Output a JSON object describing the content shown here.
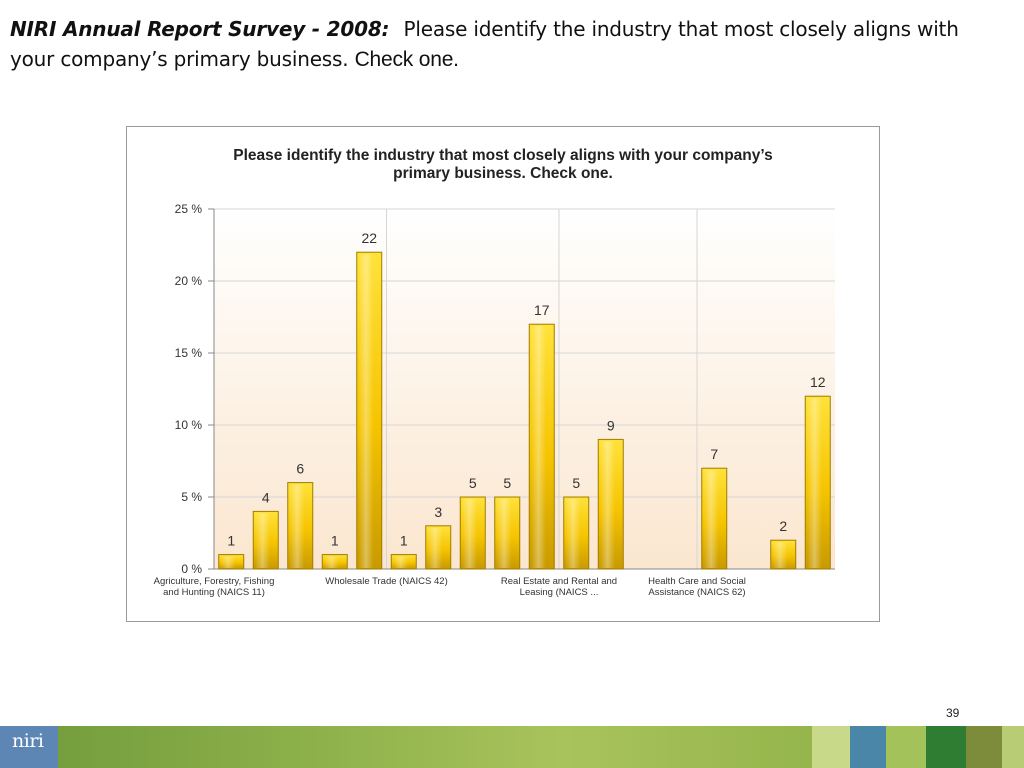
{
  "slide": {
    "heading_lead": "NIRI Annual Report Survey - 2008:",
    "heading_body": "Please identify the industry that most closely aligns with your company’s primary business.",
    "heading_tail": "Check one.",
    "page_number": "39",
    "logo_text": "niri"
  },
  "colors": {
    "bar_fill": "#f5c400",
    "bar_edge": "#b08a00",
    "footer_green": "#8db04a",
    "logo_blue": "#5d86b5"
  },
  "chart_data": {
    "type": "bar",
    "title_lines": [
      "Please identify the industry that most closely aligns with your company’s",
      "primary business. Check one."
    ],
    "ylim": [
      0,
      25
    ],
    "yticks": [
      0,
      5,
      10,
      15,
      20,
      25
    ],
    "ytick_labels": [
      "0 %",
      "5 %",
      "10 %",
      "15 %",
      "20 %",
      "25 %"
    ],
    "values": [
      1,
      4,
      6,
      1,
      22,
      1,
      3,
      5,
      5,
      17,
      5,
      9,
      null,
      null,
      7,
      null,
      2,
      12
    ],
    "value_labels": [
      "1",
      "4",
      "6",
      "1",
      "22",
      "1",
      "3",
      "5",
      "5",
      "17",
      "5",
      "9",
      "",
      "",
      "7",
      "",
      "2",
      "12"
    ],
    "category_labels": [
      {
        "index": 0,
        "lines": [
          "Agriculture, Forestry, Fishing",
          "and Hunting (NAICS 11)"
        ]
      },
      {
        "index": 5,
        "lines": [
          "Wholesale Trade (NAICS 42)"
        ]
      },
      {
        "index": 10,
        "lines": [
          "Real Estate and Rental and",
          "Leasing (NAICS  ..."
        ]
      },
      {
        "index": 14,
        "lines": [
          "Health Care and Social",
          "Assistance (NAICS 62)"
        ]
      }
    ],
    "grid": true,
    "legend": "none"
  }
}
